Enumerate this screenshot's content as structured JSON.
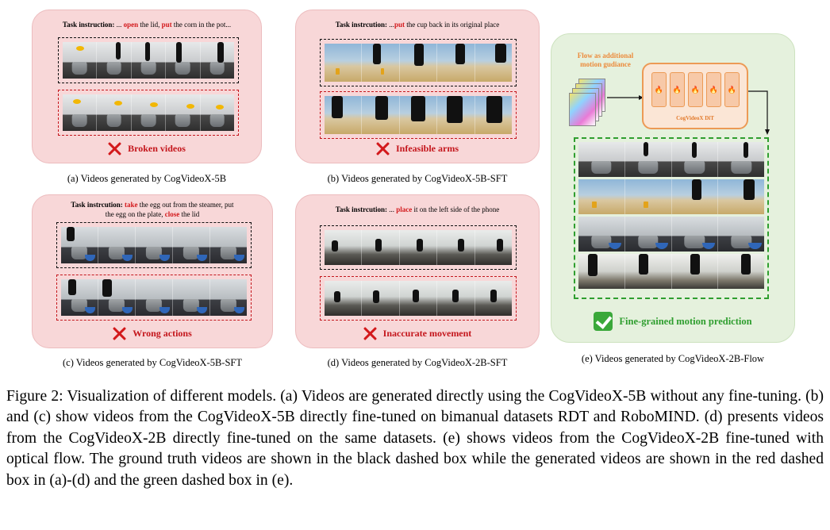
{
  "panels": {
    "a": {
      "task_prefix": "Task instruction:",
      "task_parts": [
        " ... ",
        "open",
        " the lid, ",
        "put",
        " the corn in the pot..."
      ],
      "failure": "Broken videos",
      "caption": "(a) Videos generated by CogVideoX-5B"
    },
    "b": {
      "task_prefix": "Task instrcution:",
      "task_parts": [
        " ...",
        "put",
        " the cup back in its original place"
      ],
      "failure": "Infeasible arms",
      "caption": "(b) Videos generated by CogVideoX-5B-SFT"
    },
    "c": {
      "task_prefix": "Task instrcution:",
      "task_parts": [
        " ",
        "take",
        " the egg out from the steamer, put",
        "the egg on the plate, ",
        "close",
        " the lid"
      ],
      "failure": "Wrong actions",
      "caption": "(c) Videos generated by CogVideoX-5B-SFT"
    },
    "d": {
      "task_prefix": "Task instrcution:",
      "task_parts": [
        " ... ",
        "place",
        " it on the left side of the phone"
      ],
      "failure": "Inaccurate movement",
      "caption": "(d) Videos generated by CogVideoX-2B-SFT"
    },
    "e": {
      "flow_label": "Flow as additional motion gudiance",
      "dit_label": "CogVideoX DiT",
      "success": "Fine-grained motion prediction",
      "caption": "(e) Videos generated by CogVideoX-2B-Flow"
    }
  },
  "icons": {
    "failure": "x-mark-icon",
    "success": "check-mark-icon",
    "dit_cell": "flame-icon"
  },
  "colors": {
    "failure_red": "#d3191c",
    "success_green": "#2f9e2f",
    "panel_pink": "#f8d7d8",
    "panel_green": "#e5f1dd",
    "dit_orange": "#ec9a55"
  },
  "figure_caption": "Figure 2: Visualization of different models. (a) Videos are generated directly using the CogVideoX-5B without any fine-tuning. (b) and (c) show videos from the CogVideoX-5B directly fine-tuned on bimanual datasets RDT and RoboMIND. (d) presents videos from the CogVideoX-2B directly fine-tuned on the same datasets. (e) shows videos from the CogVideoX-2B fine-tuned with optical flow. The ground truth videos are shown in the black dashed box while the generated videos are shown in the red dashed box in (a)-(d) and the green dashed box in (e)."
}
